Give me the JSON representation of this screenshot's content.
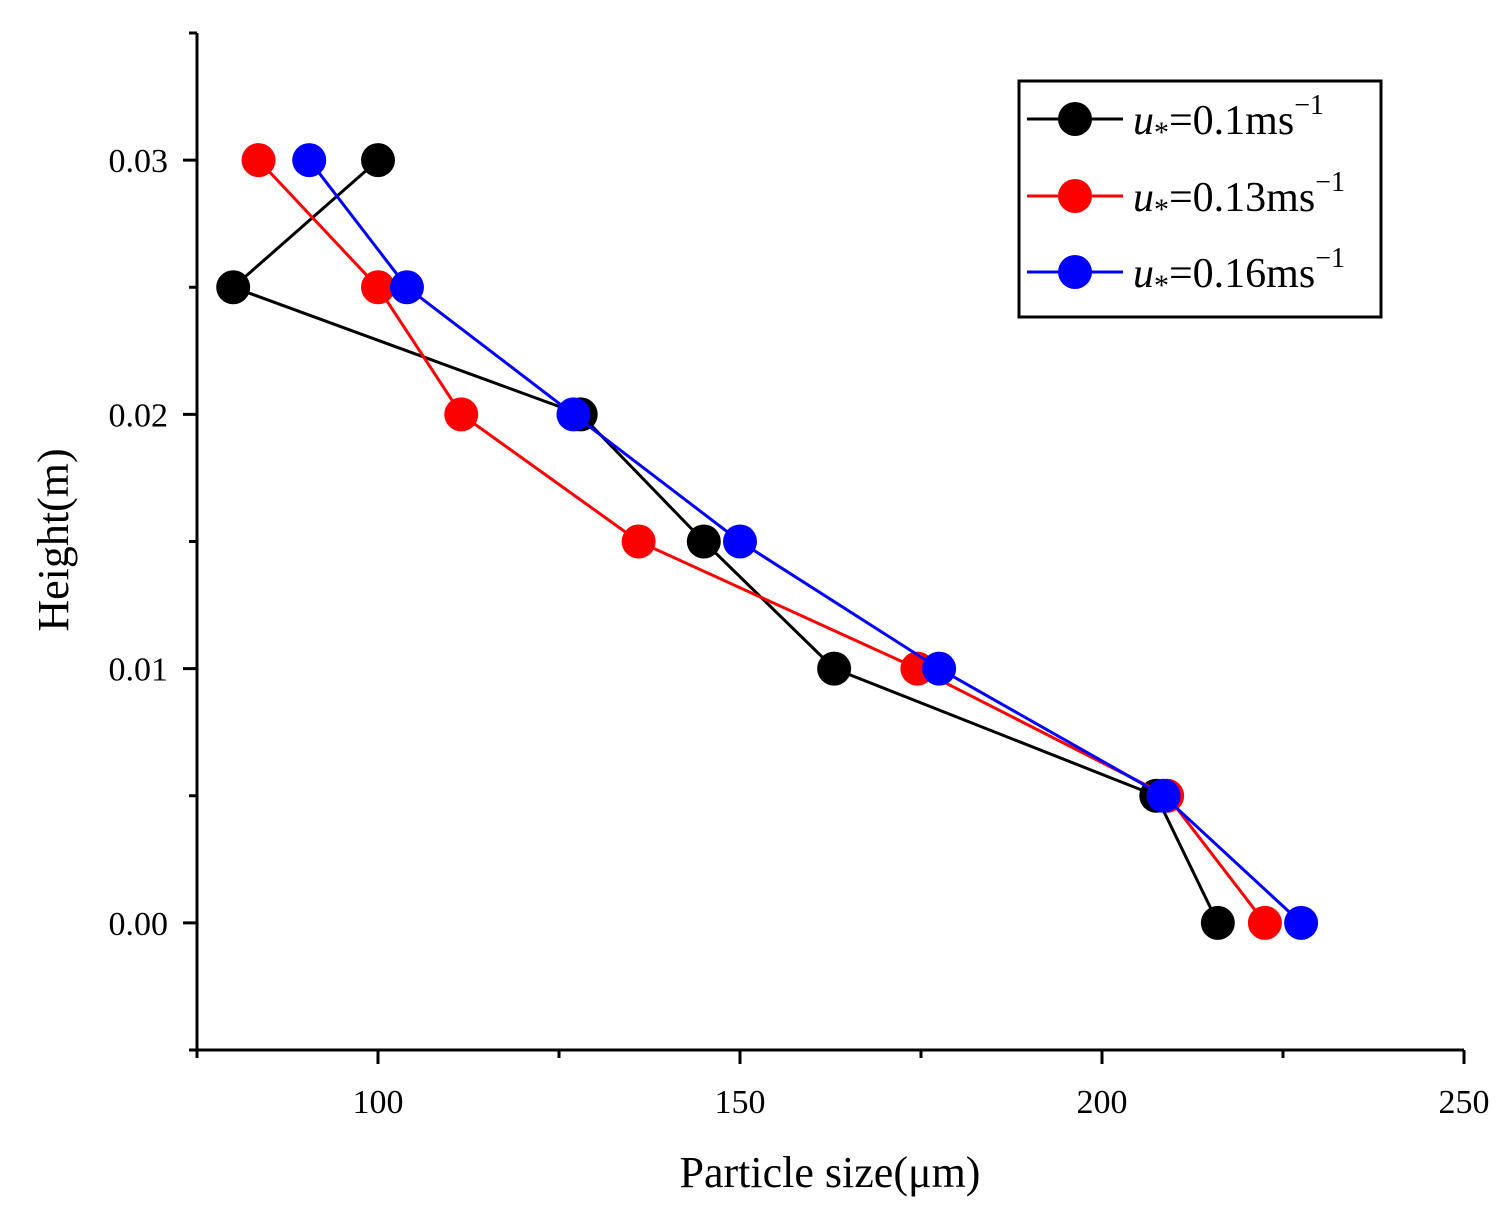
{
  "chart_data": {
    "type": "line",
    "title": "",
    "xlabel": "Particle size(μm)",
    "ylabel": "Height(m)",
    "xlim": [
      75,
      250
    ],
    "ylim": [
      -0.005,
      0.035
    ],
    "x_ticks": [
      100,
      150,
      200,
      250
    ],
    "y_ticks": [
      0.0,
      0.01,
      0.02,
      0.03
    ],
    "x_tick_labels": [
      "100",
      "150",
      "200",
      "250"
    ],
    "y_tick_labels": [
      "0.00",
      "0.01",
      "0.02",
      "0.03"
    ],
    "grid": false,
    "legend_position": "top-right",
    "series": [
      {
        "name": "u*=0.1ms−1",
        "label_var": "u",
        "label_sub": "*",
        "label_value": "=0.1ms",
        "label_sup": "−1",
        "color": "#000000",
        "x": [
          216,
          207.5,
          163,
          145,
          128,
          80,
          100
        ],
        "y": [
          0.0,
          0.005,
          0.01,
          0.015,
          0.02,
          0.025,
          0.03
        ]
      },
      {
        "name": "u*=0.13ms−1",
        "label_var": "u",
        "label_sub": "*",
        "label_value": "=0.13ms",
        "label_sup": "−1",
        "color": "#ff0000",
        "x": [
          222.5,
          209,
          174.5,
          136,
          111.5,
          100,
          83.5
        ],
        "y": [
          0.0,
          0.005,
          0.01,
          0.015,
          0.02,
          0.025,
          0.03
        ]
      },
      {
        "name": "u*=0.16ms−1",
        "label_var": "u",
        "label_sub": "*",
        "label_value": "=0.16ms",
        "label_sup": "−1",
        "color": "#0000ff",
        "x": [
          227.5,
          208.5,
          177.5,
          150,
          127,
          104,
          90.5
        ],
        "y": [
          0.0,
          0.005,
          0.01,
          0.015,
          0.02,
          0.025,
          0.03
        ]
      }
    ]
  }
}
